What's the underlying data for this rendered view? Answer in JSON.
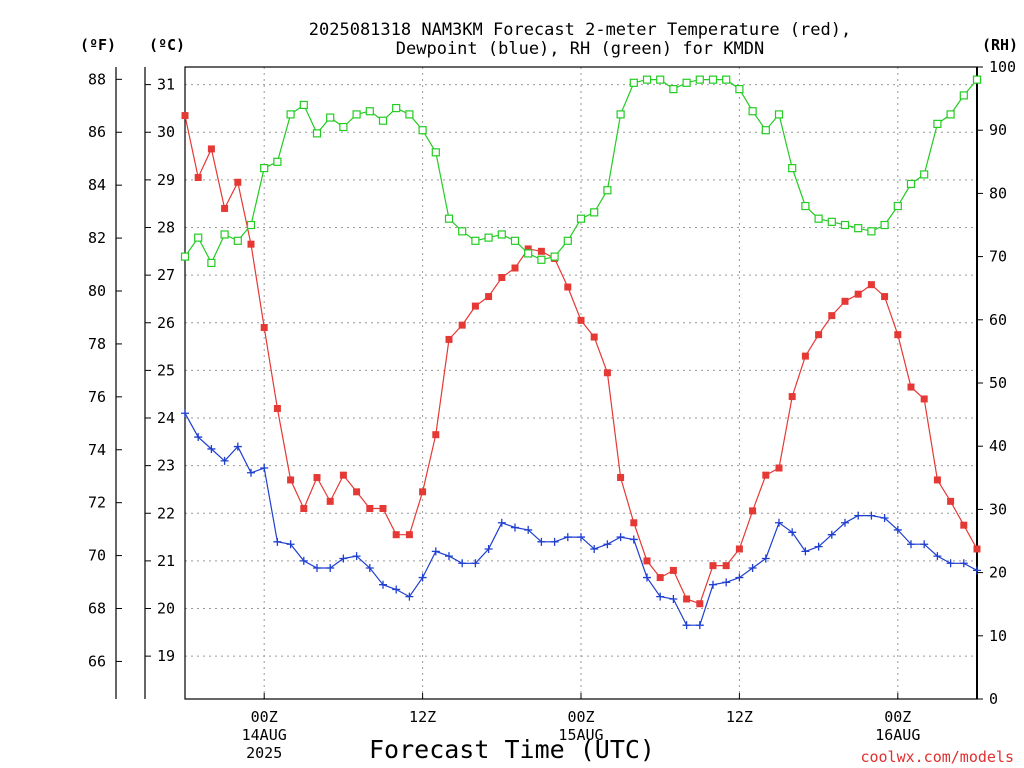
{
  "chart_data": {
    "type": "line",
    "title_line1": "2025081318 NAM3KM Forecast 2-meter Temperature (red),",
    "title_line2": "Dewpoint (blue), RH (green) for KMDN",
    "xlabel": "Forecast Time (UTC)",
    "credit": "coolwx.com/models",
    "units": {
      "fahrenheit": "(ºF)",
      "celsius": "(ºC)",
      "rh": "(RH)"
    },
    "x_hours_since_start": {
      "start": 0,
      "end": 60,
      "step": 1,
      "first_point": "2025-08-13 18Z"
    },
    "x_ticks": [
      {
        "hour": 6,
        "line1": "00Z",
        "line2": "14AUG",
        "line3": "2025"
      },
      {
        "hour": 18,
        "line1": "12Z",
        "line2": "",
        "line3": ""
      },
      {
        "hour": 30,
        "line1": "00Z",
        "line2": "15AUG",
        "line3": ""
      },
      {
        "hour": 42,
        "line1": "12Z",
        "line2": "",
        "line3": ""
      },
      {
        "hour": 54,
        "line1": "00Z",
        "line2": "16AUG",
        "line3": ""
      }
    ],
    "ylim_celsius": [
      18.1,
      31.37
    ],
    "ylim_rh": [
      0,
      100
    ],
    "celsius_ticks": [
      19,
      20,
      21,
      22,
      23,
      24,
      25,
      26,
      27,
      28,
      29,
      30,
      31
    ],
    "fahrenheit_ticks": [
      66,
      68,
      70,
      72,
      74,
      76,
      78,
      80,
      82,
      84,
      86,
      88
    ],
    "rh_ticks": [
      0,
      10,
      20,
      30,
      40,
      50,
      60,
      70,
      80,
      90,
      100
    ],
    "grid": true,
    "series": [
      {
        "name": "Temperature",
        "color": "#e53935",
        "marker": "filled-square",
        "axis": "celsius",
        "values": [
          30.35,
          29.05,
          29.65,
          28.4,
          28.95,
          27.65,
          25.9,
          24.2,
          22.7,
          22.1,
          22.75,
          22.25,
          22.8,
          22.45,
          22.1,
          22.1,
          21.55,
          21.55,
          22.45,
          23.65,
          25.65,
          25.95,
          26.35,
          26.55,
          26.95,
          27.15,
          27.55,
          27.5,
          27.35,
          26.75,
          26.05,
          25.7,
          24.95,
          22.75,
          21.8,
          21.0,
          20.65,
          20.8,
          20.2,
          20.1,
          20.9,
          20.9,
          21.25,
          22.05,
          22.8,
          22.95,
          24.45,
          25.3,
          25.75,
          26.15,
          26.45,
          26.6,
          26.8,
          26.55,
          25.75,
          24.65,
          24.4,
          22.7,
          22.25,
          21.75,
          21.25
        ]
      },
      {
        "name": "Dewpoint",
        "color": "#1f3fd0",
        "marker": "plus",
        "axis": "celsius",
        "values": [
          24.1,
          23.6,
          23.35,
          23.1,
          23.4,
          22.85,
          22.95,
          21.4,
          21.35,
          21.0,
          20.85,
          20.85,
          21.05,
          21.1,
          20.85,
          20.5,
          20.4,
          20.25,
          20.65,
          21.2,
          21.1,
          20.95,
          20.95,
          21.25,
          21.8,
          21.7,
          21.65,
          21.4,
          21.4,
          21.5,
          21.5,
          21.25,
          21.35,
          21.5,
          21.45,
          20.65,
          20.25,
          20.2,
          19.65,
          19.65,
          20.5,
          20.55,
          20.65,
          20.85,
          21.05,
          21.8,
          21.6,
          21.2,
          21.3,
          21.55,
          21.8,
          21.95,
          21.95,
          21.9,
          21.65,
          21.35,
          21.35,
          21.1,
          20.95,
          20.95,
          20.8
        ]
      },
      {
        "name": "RH",
        "color": "#22cc22",
        "marker": "open-square",
        "axis": "rh",
        "values": [
          70,
          73,
          69,
          73.5,
          72.5,
          75,
          84,
          85,
          92.5,
          94,
          89.5,
          92,
          90.5,
          92.5,
          93,
          91.5,
          93.5,
          92.5,
          90,
          86.5,
          76,
          74,
          72.5,
          73,
          73.5,
          72.5,
          70.5,
          69.5,
          70,
          72.5,
          76,
          77,
          80.5,
          92.5,
          97.5,
          98,
          98,
          96.5,
          97.5,
          98,
          98,
          98,
          96.5,
          93,
          90,
          92.5,
          84,
          78,
          76,
          75.5,
          75,
          74.5,
          74,
          75,
          78,
          81.5,
          83,
          91,
          92.5,
          95.5,
          98
        ]
      }
    ]
  }
}
